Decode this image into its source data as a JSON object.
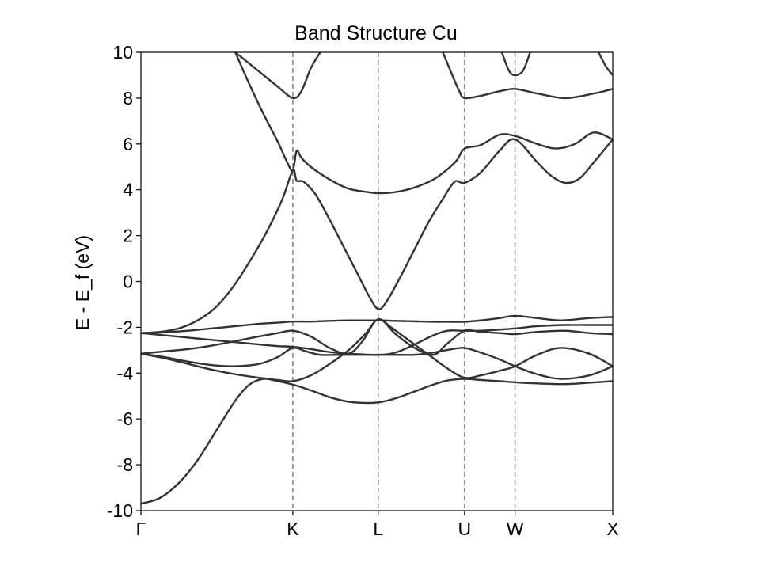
{
  "chart_data": {
    "type": "line",
    "title": "Band Structure Cu",
    "ylabel": "E - E_f (eV)",
    "xlabel": "",
    "ylim": [
      -10,
      10
    ],
    "yticks": [
      -10,
      -8,
      -6,
      -4,
      -2,
      0,
      2,
      4,
      6,
      8,
      10
    ],
    "ytick_labels": [
      "-10",
      "-8",
      "-6",
      "-4",
      "-2",
      "0",
      "2",
      "4",
      "6",
      "8",
      "10"
    ],
    "kpath": [
      {
        "label": "Γ",
        "x": 0
      },
      {
        "label": "K",
        "x": 0.322
      },
      {
        "label": "L",
        "x": 0.503
      },
      {
        "label": "U",
        "x": 0.686
      },
      {
        "label": "W",
        "x": 0.793
      },
      {
        "label": "X",
        "x": 1.0
      }
    ],
    "grid": false,
    "legend": "none",
    "line_color": "#333333",
    "vline_color": "#808080",
    "series": [
      {
        "values": [
          [
            0,
            -9.7
          ],
          [
            0.04,
            -9.45
          ],
          [
            0.08,
            -8.8
          ],
          [
            0.12,
            -7.8
          ],
          [
            0.16,
            -6.5
          ],
          [
            0.2,
            -5.2
          ],
          [
            0.23,
            -4.5
          ],
          [
            0.26,
            -4.25
          ],
          [
            0.29,
            -4.35
          ],
          [
            0.322,
            -4.5
          ],
          [
            0.36,
            -4.75
          ],
          [
            0.4,
            -5.05
          ],
          [
            0.44,
            -5.25
          ],
          [
            0.473,
            -5.3
          ],
          [
            0.503,
            -5.28
          ],
          [
            0.54,
            -5.1
          ],
          [
            0.58,
            -4.8
          ],
          [
            0.62,
            -4.5
          ],
          [
            0.65,
            -4.32
          ],
          [
            0.686,
            -4.25
          ],
          [
            0.72,
            -4.3
          ],
          [
            0.76,
            -4.35
          ],
          [
            0.793,
            -4.4
          ],
          [
            0.84,
            -4.45
          ],
          [
            0.9,
            -4.48
          ],
          [
            0.95,
            -4.42
          ],
          [
            1.0,
            -4.35
          ]
        ]
      },
      {
        "values": [
          [
            0,
            -3.15
          ],
          [
            0.05,
            -3.3
          ],
          [
            0.1,
            -3.5
          ],
          [
            0.15,
            -3.65
          ],
          [
            0.2,
            -3.7
          ],
          [
            0.25,
            -3.6
          ],
          [
            0.29,
            -3.3
          ],
          [
            0.322,
            -2.9
          ],
          [
            0.35,
            -3.05
          ],
          [
            0.38,
            -3.2
          ],
          [
            0.42,
            -3.2
          ],
          [
            0.46,
            -3.2
          ],
          [
            0.503,
            -3.2
          ],
          [
            0.54,
            -3.2
          ],
          [
            0.58,
            -3.2
          ],
          [
            0.62,
            -3.1
          ],
          [
            0.66,
            -2.95
          ],
          [
            0.686,
            -2.9
          ],
          [
            0.72,
            -3.1
          ],
          [
            0.76,
            -3.4
          ],
          [
            0.793,
            -3.7
          ],
          [
            0.84,
            -4.05
          ],
          [
            0.89,
            -4.25
          ],
          [
            0.95,
            -4.1
          ],
          [
            1.0,
            -3.7
          ]
        ]
      },
      {
        "values": [
          [
            0,
            -3.15
          ],
          [
            0.05,
            -3.35
          ],
          [
            0.1,
            -3.6
          ],
          [
            0.15,
            -3.85
          ],
          [
            0.2,
            -4.05
          ],
          [
            0.25,
            -4.2
          ],
          [
            0.29,
            -4.3
          ],
          [
            0.322,
            -4.35
          ],
          [
            0.36,
            -4.1
          ],
          [
            0.4,
            -3.6
          ],
          [
            0.44,
            -3.0
          ],
          [
            0.475,
            -2.3
          ],
          [
            0.503,
            -1.65
          ],
          [
            0.53,
            -2.0
          ],
          [
            0.57,
            -2.6
          ],
          [
            0.61,
            -3.2
          ],
          [
            0.65,
            -3.8
          ],
          [
            0.686,
            -4.2
          ],
          [
            0.72,
            -4.1
          ],
          [
            0.76,
            -3.9
          ],
          [
            0.793,
            -3.7
          ],
          [
            0.84,
            -3.2
          ],
          [
            0.89,
            -2.9
          ],
          [
            0.95,
            -3.15
          ],
          [
            1.0,
            -3.7
          ]
        ]
      },
      {
        "values": [
          [
            0,
            -3.15
          ],
          [
            0.05,
            -3.05
          ],
          [
            0.1,
            -2.95
          ],
          [
            0.15,
            -2.8
          ],
          [
            0.2,
            -2.6
          ],
          [
            0.25,
            -2.4
          ],
          [
            0.29,
            -2.25
          ],
          [
            0.322,
            -2.15
          ],
          [
            0.36,
            -2.4
          ],
          [
            0.4,
            -2.9
          ],
          [
            0.44,
            -3.15
          ],
          [
            0.47,
            -2.6
          ],
          [
            0.503,
            -1.65
          ],
          [
            0.54,
            -2.3
          ],
          [
            0.58,
            -2.9
          ],
          [
            0.62,
            -3.2
          ],
          [
            0.65,
            -2.7
          ],
          [
            0.686,
            -2.15
          ],
          [
            0.72,
            -2.2
          ],
          [
            0.76,
            -2.25
          ],
          [
            0.793,
            -2.3
          ],
          [
            0.84,
            -2.2
          ],
          [
            0.9,
            -2.15
          ],
          [
            0.95,
            -2.25
          ],
          [
            1.0,
            -2.3
          ]
        ]
      },
      {
        "values": [
          [
            0,
            -2.25
          ],
          [
            0.05,
            -2.35
          ],
          [
            0.1,
            -2.45
          ],
          [
            0.15,
            -2.55
          ],
          [
            0.2,
            -2.65
          ],
          [
            0.25,
            -2.75
          ],
          [
            0.29,
            -2.82
          ],
          [
            0.322,
            -2.85
          ],
          [
            0.36,
            -2.95
          ],
          [
            0.4,
            -3.08
          ],
          [
            0.44,
            -3.15
          ],
          [
            0.503,
            -3.2
          ],
          [
            0.54,
            -3.1
          ],
          [
            0.58,
            -2.75
          ],
          [
            0.62,
            -2.35
          ],
          [
            0.65,
            -2.15
          ],
          [
            0.686,
            -2.15
          ],
          [
            0.72,
            -2.15
          ],
          [
            0.76,
            -2.1
          ],
          [
            0.793,
            -2.05
          ],
          [
            0.84,
            -1.95
          ],
          [
            0.9,
            -1.9
          ],
          [
            0.95,
            -1.9
          ],
          [
            1.0,
            -1.9
          ]
        ]
      },
      {
        "values": [
          [
            0,
            -2.25
          ],
          [
            0.05,
            -2.22
          ],
          [
            0.1,
            -2.15
          ],
          [
            0.15,
            -2.05
          ],
          [
            0.2,
            -1.95
          ],
          [
            0.25,
            -1.85
          ],
          [
            0.29,
            -1.8
          ],
          [
            0.322,
            -1.75
          ],
          [
            0.36,
            -1.75
          ],
          [
            0.4,
            -1.72
          ],
          [
            0.44,
            -1.7
          ],
          [
            0.503,
            -1.7
          ],
          [
            0.54,
            -1.72
          ],
          [
            0.58,
            -1.74
          ],
          [
            0.62,
            -1.76
          ],
          [
            0.65,
            -1.76
          ],
          [
            0.686,
            -1.76
          ],
          [
            0.72,
            -1.7
          ],
          [
            0.76,
            -1.6
          ],
          [
            0.793,
            -1.5
          ],
          [
            0.84,
            -1.6
          ],
          [
            0.89,
            -1.7
          ],
          [
            0.95,
            -1.6
          ],
          [
            1.0,
            -1.55
          ]
        ]
      },
      {
        "values": [
          [
            0,
            -2.25
          ],
          [
            0.04,
            -2.2
          ],
          [
            0.08,
            -2.05
          ],
          [
            0.12,
            -1.7
          ],
          [
            0.16,
            -1.1
          ],
          [
            0.2,
            -0.1
          ],
          [
            0.24,
            1.2
          ],
          [
            0.27,
            2.3
          ],
          [
            0.3,
            3.6
          ],
          [
            0.322,
            4.85
          ],
          [
            0.33,
            4.4
          ],
          [
            0.345,
            4.35
          ],
          [
            0.37,
            3.8
          ],
          [
            0.4,
            2.7
          ],
          [
            0.43,
            1.5
          ],
          [
            0.46,
            0.3
          ],
          [
            0.485,
            -0.7
          ],
          [
            0.503,
            -1.2
          ],
          [
            0.52,
            -0.9
          ],
          [
            0.55,
            0.2
          ],
          [
            0.58,
            1.4
          ],
          [
            0.61,
            2.6
          ],
          [
            0.64,
            3.6
          ],
          [
            0.665,
            4.35
          ],
          [
            0.686,
            4.3
          ],
          [
            0.72,
            4.75
          ],
          [
            0.76,
            5.7
          ],
          [
            0.793,
            6.2
          ],
          [
            0.84,
            5.2
          ],
          [
            0.87,
            4.6
          ],
          [
            0.9,
            4.3
          ],
          [
            0.93,
            4.5
          ],
          [
            0.96,
            5.2
          ],
          [
            1.0,
            6.2
          ]
        ]
      },
      {
        "values": [
          [
            0.2,
            10.0
          ],
          [
            0.23,
            8.6
          ],
          [
            0.26,
            7.3
          ],
          [
            0.29,
            6.1
          ],
          [
            0.31,
            5.2
          ],
          [
            0.322,
            4.85
          ],
          [
            0.33,
            5.7
          ],
          [
            0.34,
            5.4
          ],
          [
            0.36,
            5.0
          ],
          [
            0.4,
            4.45
          ],
          [
            0.44,
            4.05
          ],
          [
            0.48,
            3.9
          ],
          [
            0.503,
            3.85
          ],
          [
            0.54,
            3.9
          ],
          [
            0.58,
            4.1
          ],
          [
            0.62,
            4.45
          ],
          [
            0.65,
            4.9
          ],
          [
            0.67,
            5.3
          ],
          [
            0.686,
            5.8
          ],
          [
            0.72,
            5.95
          ],
          [
            0.76,
            6.4
          ],
          [
            0.793,
            6.35
          ],
          [
            0.84,
            6.0
          ],
          [
            0.88,
            5.8
          ],
          [
            0.92,
            6.0
          ],
          [
            0.96,
            6.5
          ],
          [
            1.0,
            6.2
          ]
        ]
      },
      {
        "values": [
          [
            0.2,
            10.0
          ],
          [
            0.23,
            9.5
          ],
          [
            0.26,
            9.0
          ],
          [
            0.29,
            8.5
          ],
          [
            0.322,
            8.0
          ],
          [
            0.34,
            8.3
          ],
          [
            0.36,
            9.3
          ],
          [
            0.38,
            10.0
          ]
        ]
      },
      {
        "values": [
          [
            0.64,
            10.0
          ],
          [
            0.66,
            9.0
          ],
          [
            0.675,
            8.3
          ],
          [
            0.686,
            8.0
          ],
          [
            0.72,
            8.1
          ],
          [
            0.76,
            8.3
          ],
          [
            0.793,
            8.4
          ],
          [
            0.84,
            8.2
          ],
          [
            0.9,
            8.0
          ],
          [
            0.96,
            8.2
          ],
          [
            1.0,
            8.4
          ]
        ]
      },
      {
        "values": [
          [
            0.765,
            10.0
          ],
          [
            0.78,
            9.2
          ],
          [
            0.793,
            9.0
          ],
          [
            0.81,
            9.2
          ],
          [
            0.825,
            10.0
          ]
        ]
      },
      {
        "values": [
          [
            0.97,
            10.0
          ],
          [
            0.985,
            9.4
          ],
          [
            1.0,
            9.0
          ]
        ]
      }
    ]
  }
}
